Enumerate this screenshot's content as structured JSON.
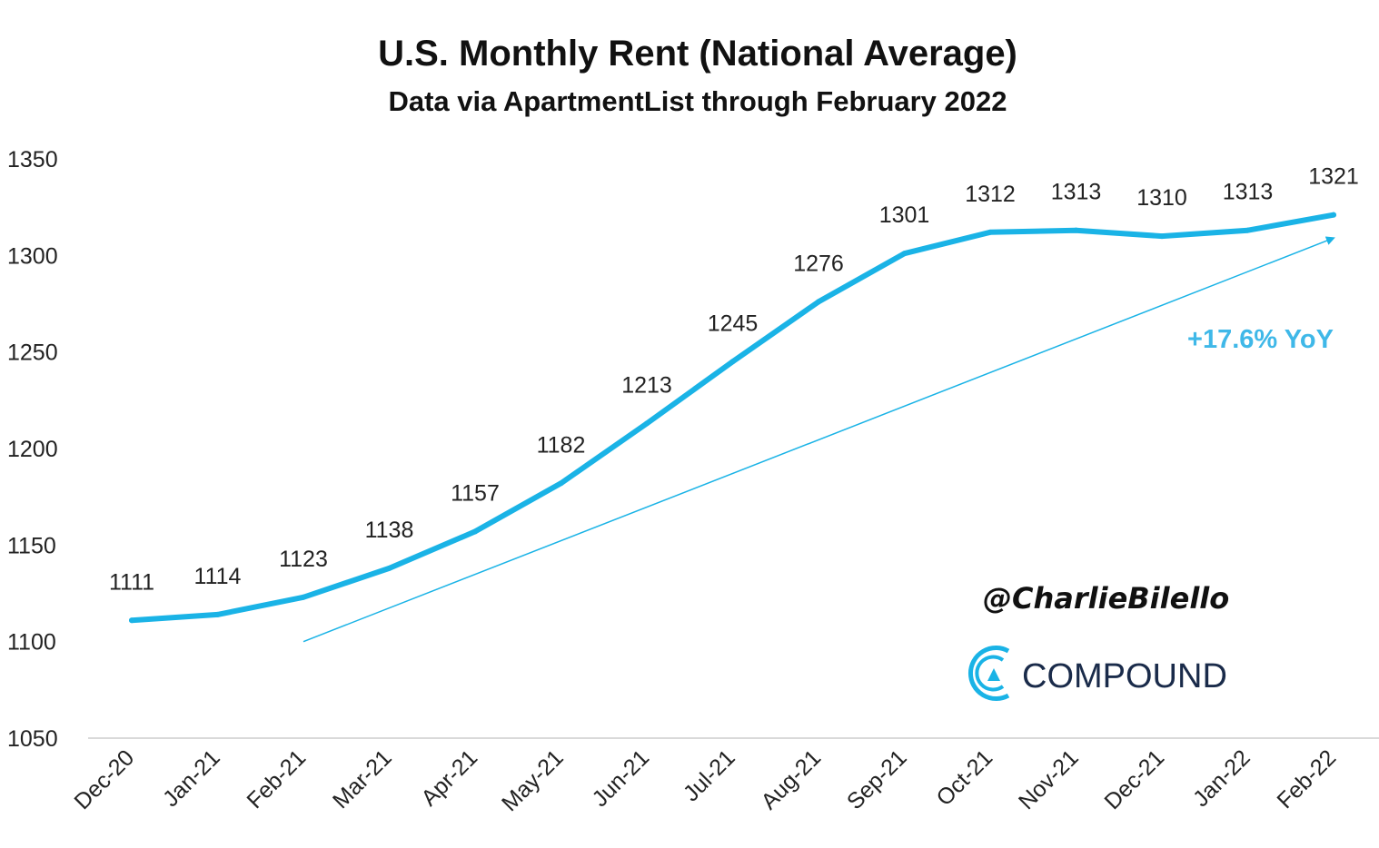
{
  "chart_data": {
    "type": "line",
    "title": "U.S. Monthly Rent (National Average)",
    "subtitle": "Data via ApartmentList through February 2022",
    "categories": [
      "Dec-20",
      "Jan-21",
      "Feb-21",
      "Mar-21",
      "Apr-21",
      "May-21",
      "Jun-21",
      "Jul-21",
      "Aug-21",
      "Sep-21",
      "Oct-21",
      "Nov-21",
      "Dec-21",
      "Jan-22",
      "Feb-22"
    ],
    "series": [
      {
        "name": "U.S. Monthly Rent",
        "values": [
          1111,
          1114,
          1123,
          1138,
          1157,
          1182,
          1213,
          1245,
          1276,
          1301,
          1312,
          1313,
          1310,
          1313,
          1321
        ]
      }
    ],
    "data_labels": [
      "1111",
      "1114",
      "1123",
      "1138",
      "1157",
      "1182",
      "1213",
      "1245",
      "1276",
      "1301",
      "1312",
      "1313",
      "1310",
      "1313",
      "1321"
    ],
    "ylim": [
      1050,
      1350
    ],
    "yticks": [
      1050,
      1100,
      1150,
      1200,
      1250,
      1300,
      1350
    ],
    "xlabel": "",
    "ylabel": "",
    "grid": false,
    "trend_arrow": {
      "from_category": "Feb-21",
      "from_value": 1100,
      "to_category": "Feb-22",
      "to_value": 1309
    },
    "annotation": "+17.6% YoY",
    "colors": {
      "line": "#1ab3e6",
      "arrow": "#1ab3e6",
      "annotation": "#3fb8e8",
      "axis": "#d9d9d9"
    }
  },
  "watermark": {
    "handle": "@CharlieBilello",
    "brand": "COMPOUND",
    "logo_icon": "compound-logo-icon"
  }
}
